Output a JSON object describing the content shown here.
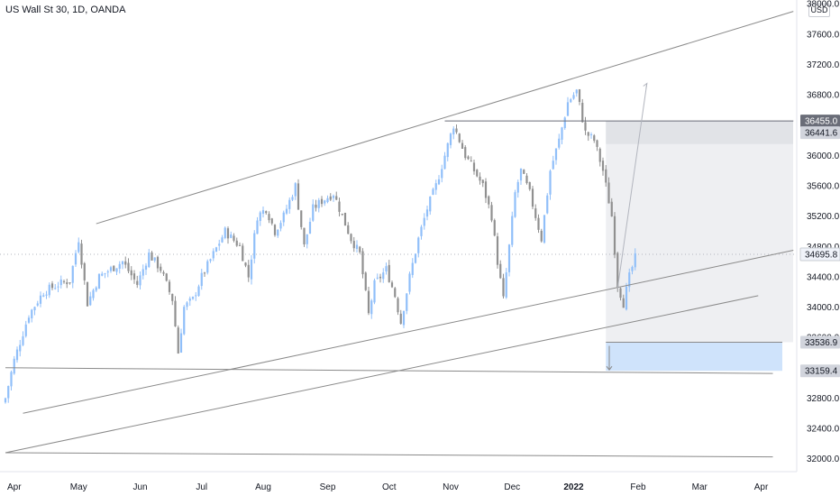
{
  "header": {
    "symbol_title": "US Wall St 30, 1D, OANDA",
    "currency": "USD"
  },
  "chart_data": {
    "type": "candlestick",
    "title": "US Wall St 30, 1D, OANDA",
    "currency": "USD",
    "y_ticks": [
      32000.0,
      32400.0,
      32800.0,
      33200.0,
      33600.0,
      34000.0,
      34400.0,
      34800.0,
      35200.0,
      35600.0,
      36000.0,
      36400.0,
      36800.0,
      37200.0,
      37600.0,
      38000.0
    ],
    "ylim": [
      31830,
      38050
    ],
    "x_ticks": [
      {
        "label": "Apr",
        "index": 3,
        "bold": false
      },
      {
        "label": "May",
        "index": 25,
        "bold": false
      },
      {
        "label": "Jun",
        "index": 46,
        "bold": false
      },
      {
        "label": "Jul",
        "index": 67,
        "bold": false
      },
      {
        "label": "Aug",
        "index": 88,
        "bold": false
      },
      {
        "label": "Sep",
        "index": 110,
        "bold": false
      },
      {
        "label": "Oct",
        "index": 131,
        "bold": false
      },
      {
        "label": "Nov",
        "index": 152,
        "bold": false
      },
      {
        "label": "Dec",
        "index": 173,
        "bold": false
      },
      {
        "label": "2022",
        "index": 194,
        "bold": true
      },
      {
        "label": "Feb",
        "index": 216,
        "bold": false
      },
      {
        "label": "Mar",
        "index": 237,
        "bold": false
      },
      {
        "label": "Apr",
        "index": 258,
        "bold": false
      }
    ],
    "price_tags": [
      {
        "label": "36455.0",
        "value": 36455.0,
        "style": "dark"
      },
      {
        "label": "36441.6",
        "value": 36300.0,
        "style": "gray"
      },
      {
        "label": "34695.8",
        "value": 34695.8,
        "style": "light"
      },
      {
        "label": "33536.9",
        "value": 33536.9,
        "style": "gray"
      },
      {
        "label": "33159.4",
        "value": 33159.4,
        "style": "gray"
      }
    ],
    "current_price": 34695.8,
    "colors": {
      "up": "#90bff9",
      "down": "#909090",
      "trend_lines": "#8a8a8a",
      "projection": "#b2b5be"
    },
    "path": [
      [
        0,
        32800
      ],
      [
        3,
        33300
      ],
      [
        8,
        33900
      ],
      [
        13,
        34200
      ],
      [
        18,
        34300
      ],
      [
        22,
        34350
      ],
      [
        25,
        34900
      ],
      [
        28,
        34050
      ],
      [
        32,
        34400
      ],
      [
        36,
        34500
      ],
      [
        40,
        34600
      ],
      [
        45,
        34300
      ],
      [
        49,
        34700
      ],
      [
        53,
        34500
      ],
      [
        57,
        34100
      ],
      [
        59,
        33400
      ],
      [
        61,
        34000
      ],
      [
        64,
        34100
      ],
      [
        67,
        34400
      ],
      [
        71,
        34700
      ],
      [
        75,
        35000
      ],
      [
        80,
        34800
      ],
      [
        83,
        34400
      ],
      [
        86,
        35200
      ],
      [
        89,
        35300
      ],
      [
        92,
        35000
      ],
      [
        95,
        35200
      ],
      [
        99,
        35600
      ],
      [
        102,
        34800
      ],
      [
        105,
        35300
      ],
      [
        108,
        35400
      ],
      [
        112,
        35500
      ],
      [
        115,
        35200
      ],
      [
        118,
        34900
      ],
      [
        121,
        34700
      ],
      [
        124,
        33900
      ],
      [
        126,
        34300
      ],
      [
        130,
        34500
      ],
      [
        133,
        34150
      ],
      [
        135,
        33800
      ],
      [
        138,
        34400
      ],
      [
        141,
        34900
      ],
      [
        144,
        35300
      ],
      [
        147,
        35600
      ],
      [
        150,
        36000
      ],
      [
        153,
        36400
      ],
      [
        157,
        36000
      ],
      [
        160,
        35800
      ],
      [
        163,
        35600
      ],
      [
        166,
        35200
      ],
      [
        168,
        34600
      ],
      [
        170,
        34100
      ],
      [
        172,
        34800
      ],
      [
        174,
        35500
      ],
      [
        176,
        35800
      ],
      [
        179,
        35500
      ],
      [
        183,
        34900
      ],
      [
        186,
        35800
      ],
      [
        189,
        36200
      ],
      [
        192,
        36700
      ],
      [
        195,
        36850
      ],
      [
        198,
        36300
      ],
      [
        201,
        36200
      ],
      [
        204,
        35800
      ],
      [
        207,
        35200
      ],
      [
        209,
        34300
      ],
      [
        211,
        34050
      ],
      [
        213,
        34400
      ],
      [
        215,
        34650
      ]
    ],
    "drawings": {
      "channel_upper": [
        [
          31,
          35100
        ],
        [
          269,
          37900
        ]
      ],
      "channel_lower": [
        [
          6,
          32600
        ],
        [
          269,
          34750
        ]
      ],
      "line_from_low": [
        [
          0,
          32080
        ],
        [
          257,
          34150
        ]
      ],
      "support_low": [
        [
          0,
          32080
        ],
        [
          262,
          32025
        ]
      ],
      "support_2": [
        [
          0,
          33200
        ],
        [
          262,
          33125
        ]
      ],
      "resistance": [
        [
          150,
          36455
        ],
        [
          269,
          36455
        ]
      ],
      "projection": [
        [
          209,
          34250
        ],
        [
          219,
          36950
        ]
      ],
      "sell_zone": {
        "x0": 205,
        "x1": 269,
        "y_top": 36455,
        "y_bottom": 33536.9
      },
      "sell_zone_top": {
        "y_top": 36455,
        "y_bottom": 36150
      },
      "target_zone": {
        "x0": 205,
        "x1": 269,
        "y_top": 33536.9,
        "y_bottom": 33159.4
      },
      "current_price_line": 34695.8
    }
  }
}
